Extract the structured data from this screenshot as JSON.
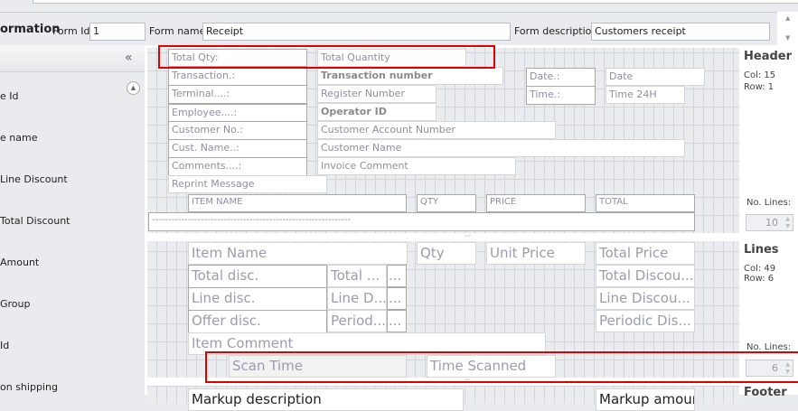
{
  "form": {
    "section_title": "ormation",
    "form_id_label": "Form Id",
    "form_id": "1",
    "form_name_label": "Form name",
    "form_name": "Receipt",
    "form_desc_label": "Form description",
    "form_desc": "Customers receipt"
  },
  "sidebar": {
    "collapse": "«",
    "items": [
      "e Id",
      "e name",
      "Line Discount",
      "Total Discount",
      "Amount",
      "Group",
      "Id",
      "on shipping"
    ]
  },
  "header_fields": [
    "Total Qty:",
    "Total Quantity",
    "Transaction.:",
    "Transaction number",
    "Date.:",
    "Date",
    "Terminal....:",
    "Register Number",
    "Time.:",
    "Time 24H",
    "Employee....:",
    "Operator ID",
    "Customer No.:",
    "Customer Account Number",
    "Cust. Name..:",
    "Customer Name",
    "Comments....:",
    "Invoice Comment",
    "Reprint Message",
    "ITEM NAME",
    "QTY",
    "PRICE",
    "TOTAL",
    "-------------------------------------------------------------"
  ],
  "line_fields": [
    "Item Name",
    "Qty",
    "Unit Price",
    "Total Price",
    "Total disc.",
    "Total ...",
    "...",
    "Total Discou...",
    "Line disc.",
    "Line D...",
    "...",
    "Line Discou...",
    "Offer disc.",
    "Period...",
    "...",
    "Periodic Dis...",
    "Item Comment",
    "Scan Time",
    "Time Scanned"
  ],
  "footer_fields": [
    "Markup description",
    "Markup amount"
  ],
  "info": {
    "header_title": "Header",
    "header_col": "Col: 15",
    "header_row": "Row: 1",
    "no_lines_label": "No. Lines:",
    "header_lines": "10",
    "lines_title": "Lines",
    "lines_col": "Col: 49",
    "lines_row": "Row: 6",
    "lines_lines": "6",
    "footer_title": "Footer"
  },
  "colors": {
    "highlight": "#e00000"
  }
}
